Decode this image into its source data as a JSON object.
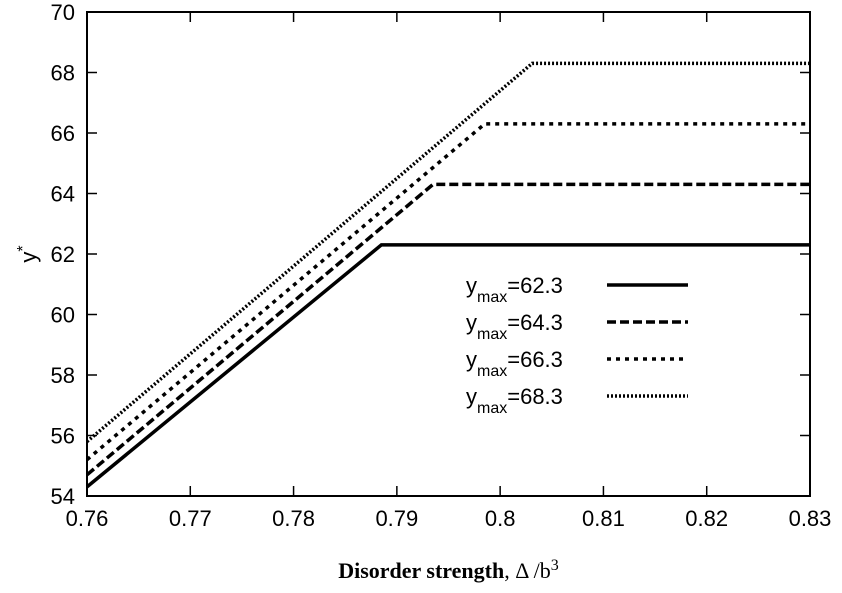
{
  "chart_data": {
    "type": "line",
    "xlabel": {
      "bold": "Disorder strength",
      "rest": ", Δ /b",
      "sup": "3"
    },
    "ylabel": {
      "main": "y",
      "sup": "*"
    },
    "xlim": [
      0.76,
      0.83
    ],
    "ylim": [
      54,
      70
    ],
    "xticks": [
      {
        "v": 0.76,
        "label": "0.76"
      },
      {
        "v": 0.77,
        "label": "0.77"
      },
      {
        "v": 0.78,
        "label": "0.78"
      },
      {
        "v": 0.79,
        "label": "0.79"
      },
      {
        "v": 0.8,
        "label": "0.8"
      },
      {
        "v": 0.81,
        "label": "0.81"
      },
      {
        "v": 0.82,
        "label": "0.82"
      },
      {
        "v": 0.83,
        "label": "0.83"
      }
    ],
    "yticks": [
      {
        "v": 54,
        "label": "54"
      },
      {
        "v": 56,
        "label": "56"
      },
      {
        "v": 58,
        "label": "58"
      },
      {
        "v": 60,
        "label": "60"
      },
      {
        "v": 62,
        "label": "62"
      },
      {
        "v": 64,
        "label": "64"
      },
      {
        "v": 66,
        "label": "66"
      },
      {
        "v": 68,
        "label": "68"
      },
      {
        "v": 70,
        "label": "70"
      }
    ],
    "grid": false,
    "legend_position": "center-right",
    "series": [
      {
        "legend_base": "y",
        "legend_sub": "max",
        "legend_value": "=62.3",
        "style": "solid",
        "x": [
          0.76,
          0.7885,
          0.83
        ],
        "y": [
          54.3,
          62.3,
          62.3
        ]
      },
      {
        "legend_base": "y",
        "legend_sub": "max",
        "legend_value": "=64.3",
        "style": "dashed",
        "x": [
          0.76,
          0.7935,
          0.83
        ],
        "y": [
          54.7,
          64.3,
          64.3
        ]
      },
      {
        "legend_base": "y",
        "legend_sub": "max",
        "legend_value": "=66.3",
        "style": "dotted",
        "x": [
          0.76,
          0.7985,
          0.83
        ],
        "y": [
          55.2,
          66.3,
          66.3
        ]
      },
      {
        "legend_base": "y",
        "legend_sub": "max",
        "legend_value": "=68.3",
        "style": "fine-dotted",
        "x": [
          0.76,
          0.8031,
          0.83
        ],
        "y": [
          55.8,
          68.3,
          68.3
        ]
      }
    ]
  }
}
